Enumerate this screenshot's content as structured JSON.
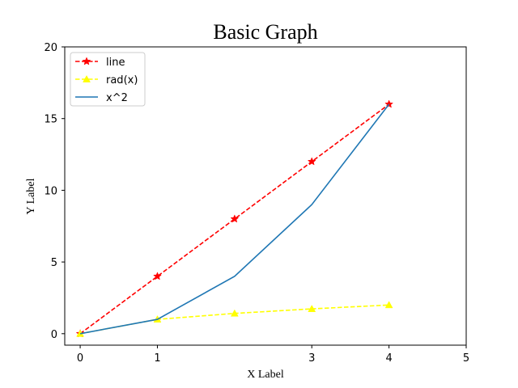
{
  "chart_data": {
    "type": "line",
    "title": "Basic Graph",
    "xlabel": "X Label",
    "ylabel": "Y Label",
    "xlim": [
      -0.2,
      5.0
    ],
    "ylim": [
      -0.8,
      20
    ],
    "xticks": [
      0,
      1,
      3,
      4,
      5
    ],
    "xtick_labels": [
      "0",
      "1",
      "3",
      "4",
      "5"
    ],
    "yticks": [
      0,
      5,
      10,
      15,
      20
    ],
    "ytick_labels": [
      "0",
      "5",
      "10",
      "15",
      "20"
    ],
    "grid": false,
    "legend_position": "top-left",
    "series": [
      {
        "name": "line",
        "color": "#ff0000",
        "line_style": "dashed",
        "marker": "star",
        "x": [
          0,
          1,
          2,
          3,
          4
        ],
        "y": [
          0,
          4,
          8,
          12,
          16
        ]
      },
      {
        "name": "rad(x)",
        "color": "#ffff00",
        "line_style": "dashed",
        "marker": "triangle",
        "x": [
          0,
          1,
          2,
          3,
          4
        ],
        "y": [
          0,
          1,
          1.414,
          1.732,
          2
        ]
      },
      {
        "name": "x^2",
        "color": "#1f77b4",
        "line_style": "solid",
        "marker": "none",
        "x": [
          0,
          1,
          2,
          3,
          4
        ],
        "y": [
          0,
          1,
          4,
          9,
          16
        ]
      }
    ]
  }
}
